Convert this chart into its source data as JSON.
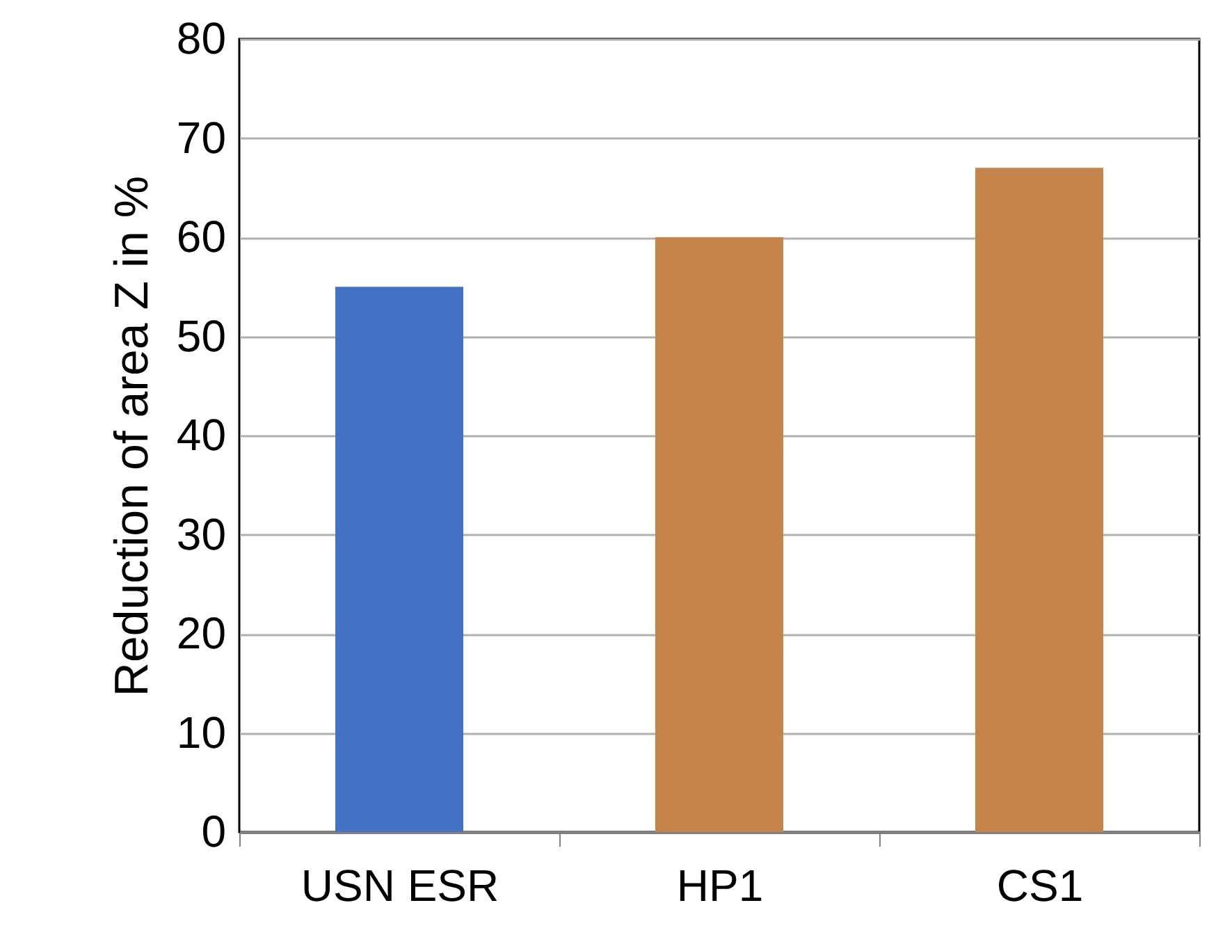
{
  "chart_data": {
    "type": "bar",
    "ylabel": "Reduction of area Z in %",
    "categories": [
      "USN ESR",
      "HP1",
      "CS1"
    ],
    "values": [
      55,
      60,
      67
    ],
    "colors": [
      "#4472c4",
      "#c5854a",
      "#c5854a"
    ],
    "ylim": [
      0,
      80
    ],
    "yticks": [
      0,
      10,
      20,
      30,
      40,
      50,
      60,
      70,
      80
    ],
    "grid": "y"
  }
}
